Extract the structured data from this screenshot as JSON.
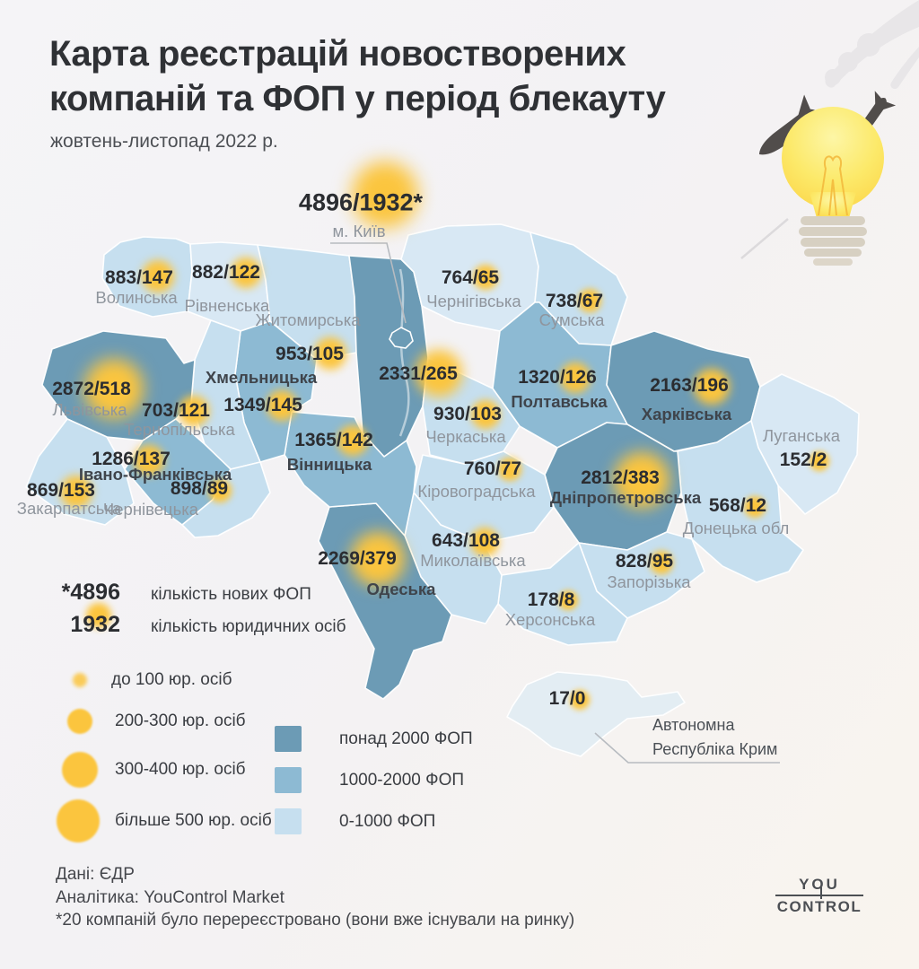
{
  "header": {
    "title": "Карта реєстрацій новостворених\nкомпаній та ФОП у період блекауту",
    "subtitle": "жовтень-листопад 2022 р."
  },
  "map": {
    "colors": {
      "dark": "#6c9bb5",
      "medium": "#8dbad3",
      "light": "#c6dfef",
      "lighter": "#d8e8f4",
      "pale": "#e3edf3"
    },
    "regions": [
      {
        "id": "kyiv-city",
        "label": "4896/1932*",
        "name": "м. Київ",
        "fop": 4896,
        "legal": 1932,
        "category": "dark",
        "name_style": "gray"
      },
      {
        "id": "kyiv-obl",
        "label": "2331/265",
        "name": "",
        "fop": 2331,
        "legal": 265,
        "category": "dark",
        "name_style": "gray"
      },
      {
        "id": "volyn",
        "label": "883/147",
        "name": "Волинська",
        "fop": 883,
        "legal": 147,
        "category": "light",
        "name_style": "gray"
      },
      {
        "id": "rivne",
        "label": "882/122",
        "name": "Рівненська",
        "fop": 882,
        "legal": 122,
        "category": "lighter",
        "name_style": "gray"
      },
      {
        "id": "zhytomyr",
        "label": "953/105",
        "name": "Житомирська",
        "fop": 953,
        "legal": 105,
        "category": "light",
        "name_style": "gray"
      },
      {
        "id": "chernihiv",
        "label": "764/65",
        "name": "Чернігівська",
        "fop": 764,
        "legal": 65,
        "category": "lighter",
        "name_style": "gray"
      },
      {
        "id": "sumy",
        "label": "738/67",
        "name": "Сумська",
        "fop": 738,
        "legal": 67,
        "category": "light",
        "name_style": "gray"
      },
      {
        "id": "lviv",
        "label": "2872/518",
        "name": "Львівська",
        "fop": 2872,
        "legal": 518,
        "category": "dark",
        "name_style": "gray"
      },
      {
        "id": "ternopil",
        "label": "703/121",
        "name": "Тернопільська",
        "fop": 703,
        "legal": 121,
        "category": "light",
        "name_style": "gray"
      },
      {
        "id": "khmelnytskyi",
        "label": "1349/145",
        "name": "Хмельницька",
        "fop": 1349,
        "legal": 145,
        "category": "medium",
        "name_style": "dark"
      },
      {
        "id": "vinnytsia",
        "label": "1365/142",
        "name": "Вінницька",
        "fop": 1365,
        "legal": 142,
        "category": "medium",
        "name_style": "dark"
      },
      {
        "id": "ivano-frankivsk",
        "label": "1286/137",
        "name": "Івано-Франківська",
        "fop": 1286,
        "legal": 137,
        "category": "medium",
        "name_style": "dark"
      },
      {
        "id": "zakarpattia",
        "label": "869/153",
        "name": "Закарпатська",
        "fop": 869,
        "legal": 153,
        "category": "light",
        "name_style": "gray"
      },
      {
        "id": "chernivtsi",
        "label": "898/89",
        "name": "Чернівецька",
        "fop": 898,
        "legal": 89,
        "category": "light",
        "name_style": "gray"
      },
      {
        "id": "cherkasy",
        "label": "930/103",
        "name": "Черкаська",
        "fop": 930,
        "legal": 103,
        "category": "light",
        "name_style": "gray"
      },
      {
        "id": "poltava",
        "label": "1320/126",
        "name": "Полтавська",
        "fop": 1320,
        "legal": 126,
        "category": "medium",
        "name_style": "dark"
      },
      {
        "id": "kharkiv",
        "label": "2163/196",
        "name": "Харківська",
        "fop": 2163,
        "legal": 196,
        "category": "dark",
        "name_style": "dark"
      },
      {
        "id": "luhansk",
        "label": "152/2",
        "name": "Луганська",
        "fop": 152,
        "legal": 2,
        "category": "lighter",
        "name_style": "gray"
      },
      {
        "id": "dnipro",
        "label": "2812/383",
        "name": "Дніпропетровська",
        "fop": 2812,
        "legal": 383,
        "category": "dark",
        "name_style": "dark"
      },
      {
        "id": "donetsk",
        "label": "568/12",
        "name": "Донецька обл",
        "fop": 568,
        "legal": 12,
        "category": "light",
        "name_style": "gray"
      },
      {
        "id": "kirovohrad",
        "label": "760/77",
        "name": "Кіровоградська",
        "fop": 760,
        "legal": 77,
        "category": "light",
        "name_style": "gray"
      },
      {
        "id": "mykolaiv",
        "label": "643/108",
        "name": "Миколаївська",
        "fop": 643,
        "legal": 108,
        "category": "light",
        "name_style": "gray"
      },
      {
        "id": "odesa",
        "label": "2269/379",
        "name": "Одеська",
        "fop": 2269,
        "legal": 379,
        "category": "dark",
        "name_style": "dark"
      },
      {
        "id": "zaporizhzhia",
        "label": "828/95",
        "name": "Запорізька",
        "fop": 828,
        "legal": 95,
        "category": "light",
        "name_style": "gray"
      },
      {
        "id": "kherson",
        "label": "178/8",
        "name": "Херсонська",
        "fop": 178,
        "legal": 8,
        "category": "light",
        "name_style": "gray"
      },
      {
        "id": "crimea",
        "label": "17/0",
        "name": "Автономна\nРеспубліка Крим",
        "fop": 17,
        "legal": 0,
        "category": "pale",
        "name_style": "crimea"
      }
    ]
  },
  "stats_legend": {
    "items": [
      {
        "value": "*4896",
        "label": "кількість нових ФОП"
      },
      {
        "value": "1932",
        "label": "кількість юридичних осіб"
      }
    ]
  },
  "size_legend": {
    "circle_color": "#fbc53e",
    "items": [
      {
        "label": "до 100 юр. осіб"
      },
      {
        "label": "200-300 юр. осіб"
      },
      {
        "label": "300-400 юр. осіб"
      },
      {
        "label": "більше 500 юр. осіб"
      }
    ]
  },
  "color_legend": {
    "items": [
      {
        "label": "понад 2000 ФОП",
        "color": "#6c9bb5"
      },
      {
        "label": "1000-2000 ФОП",
        "color": "#8dbad3"
      },
      {
        "label": "0-1000 ФОП",
        "color": "#c6dfef"
      }
    ]
  },
  "footer": {
    "lines": [
      "Дані: ЄДР",
      "Аналітика: YouControl Market",
      "*20 компаній було перереєстровано (вони вже існували на ринку)"
    ]
  },
  "logo": {
    "top": "YOU",
    "bottom": "CONTROL"
  }
}
